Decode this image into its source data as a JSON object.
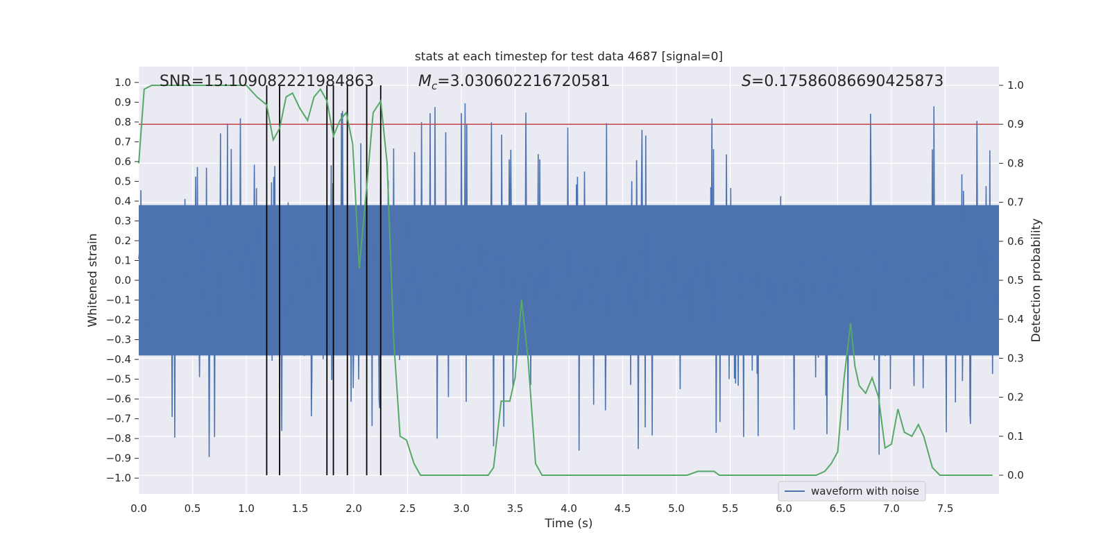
{
  "chart_data": {
    "type": "line",
    "title": "stats at each timestep for test data 4687 [signal=0]",
    "xlabel": "Time (s)",
    "ylabel_left": "Whitened strain",
    "ylabel_right": "Detection probability",
    "xlim": [
      0.0,
      8.0
    ],
    "ylim_left": [
      -1.08,
      1.08
    ],
    "ylim_right": [
      -0.048,
      1.048
    ],
    "x_ticks": [
      "0.0",
      "0.5",
      "1.0",
      "1.5",
      "2.0",
      "2.5",
      "3.0",
      "3.5",
      "4.0",
      "4.5",
      "5.0",
      "5.5",
      "6.0",
      "6.5",
      "7.0",
      "7.5"
    ],
    "y_ticks_left": [
      "1.0",
      "0.9",
      "0.8",
      "0.7",
      "0.6",
      "0.5",
      "0.4",
      "0.3",
      "0.2",
      "0.1",
      "0.0",
      "−0.1",
      "−0.2",
      "−0.3",
      "−0.4",
      "−0.5",
      "−0.6",
      "−0.7",
      "−0.8",
      "−0.9",
      "−1.0"
    ],
    "y_ticks_right": [
      "1.0",
      "0.9",
      "0.8",
      "0.7",
      "0.6",
      "0.5",
      "0.4",
      "0.3",
      "0.2",
      "0.1",
      "0.0"
    ],
    "grid": true,
    "annotations": {
      "snr": "SNR=15.109082221984863",
      "mc_symbol": "M",
      "mc_sub": "c",
      "mc_value": "=3.030602216720581",
      "s_symbol": "S",
      "s_value": "=0.17586086690425873"
    },
    "threshold": 0.9,
    "detection_lines_x": [
      1.19,
      1.31,
      1.75,
      1.81,
      1.94,
      2.12,
      2.25
    ],
    "waveform": {
      "name": "waveform with noise",
      "color": "#4c72b0",
      "approx_envelope_peak_positive": 1.0,
      "approx_envelope_peak_negative": -1.0
    },
    "detection_probability": {
      "color": "#55a868",
      "x": [
        0.0,
        0.05,
        0.12,
        0.2,
        0.4,
        0.6,
        0.8,
        1.0,
        1.1,
        1.19,
        1.25,
        1.31,
        1.37,
        1.43,
        1.5,
        1.57,
        1.63,
        1.69,
        1.75,
        1.81,
        1.87,
        1.93,
        1.99,
        2.05,
        2.12,
        2.18,
        2.25,
        2.31,
        2.37,
        2.43,
        2.49,
        2.56,
        2.62,
        2.68,
        2.8,
        3.0,
        3.1,
        3.2,
        3.25,
        3.3,
        3.37,
        3.45,
        3.5,
        3.56,
        3.62,
        3.69,
        3.75,
        3.85,
        3.95,
        4.05,
        4.15,
        4.25,
        4.35,
        4.45,
        4.6,
        4.8,
        4.95,
        5.1,
        5.2,
        5.25,
        5.3,
        5.35,
        5.4,
        5.5,
        5.7,
        5.9,
        6.1,
        6.3,
        6.38,
        6.44,
        6.5,
        6.56,
        6.62,
        6.66,
        6.7,
        6.76,
        6.82,
        6.88,
        6.94,
        7.0,
        7.06,
        7.12,
        7.19,
        7.25,
        7.3,
        7.38,
        7.45,
        7.6,
        7.8,
        7.94
      ],
      "y": [
        0.8,
        0.99,
        1.0,
        1.0,
        1.0,
        1.0,
        1.0,
        1.0,
        0.97,
        0.95,
        0.86,
        0.89,
        0.97,
        0.98,
        0.94,
        0.91,
        0.97,
        0.99,
        0.96,
        0.87,
        0.91,
        0.93,
        0.85,
        0.53,
        0.74,
        0.93,
        0.96,
        0.8,
        0.35,
        0.1,
        0.09,
        0.03,
        0.0,
        0.0,
        0.0,
        0.0,
        0.0,
        0.0,
        0.0,
        0.02,
        0.19,
        0.19,
        0.25,
        0.45,
        0.3,
        0.03,
        0.0,
        0.0,
        0.0,
        0.0,
        0.0,
        0.0,
        0.0,
        0.0,
        0.0,
        0.0,
        0.0,
        0.0,
        0.01,
        0.01,
        0.01,
        0.01,
        0.0,
        0.0,
        0.0,
        0.0,
        0.0,
        0.0,
        0.01,
        0.03,
        0.06,
        0.25,
        0.39,
        0.28,
        0.23,
        0.21,
        0.25,
        0.2,
        0.07,
        0.08,
        0.17,
        0.11,
        0.1,
        0.13,
        0.1,
        0.02,
        0.0,
        0.0,
        0.0,
        0.0
      ]
    },
    "legend": {
      "label": "waveform with noise",
      "location": "lower-right"
    }
  }
}
